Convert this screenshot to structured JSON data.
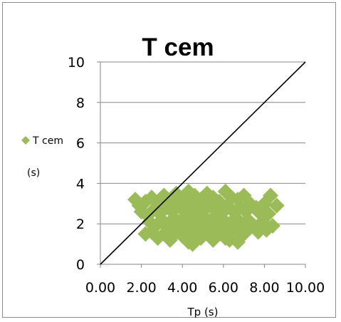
{
  "chart_data": {
    "type": "scatter",
    "title": "T cem",
    "xlabel": "Tp (s)",
    "ylabel": "",
    "xlim": [
      0,
      10
    ],
    "ylim": [
      0,
      10
    ],
    "x_tick_labels": [
      "0.00",
      "2.00",
      "4.00",
      "6.00",
      "8.00",
      "10.00"
    ],
    "y_tick_labels": [
      "0",
      "2",
      "4",
      "6",
      "8",
      "10"
    ],
    "grid": "horizontal",
    "legend_position": "left",
    "series": [
      {
        "name": "T cem (s)",
        "marker": "diamond",
        "color": "#9bbb59",
        "points": [
          [
            1.7,
            3.2
          ],
          [
            1.9,
            2.9
          ],
          [
            2.2,
            3.1
          ],
          [
            2.5,
            3.3
          ],
          [
            2.8,
            3.0
          ],
          [
            3.1,
            3.4
          ],
          [
            3.4,
            3.2
          ],
          [
            3.7,
            3.5
          ],
          [
            4.0,
            3.3
          ],
          [
            4.3,
            3.6
          ],
          [
            4.6,
            3.4
          ],
          [
            4.9,
            3.2
          ],
          [
            5.2,
            3.5
          ],
          [
            5.5,
            3.3
          ],
          [
            5.8,
            3.1
          ],
          [
            6.1,
            3.6
          ],
          [
            6.4,
            3.3
          ],
          [
            6.7,
            3.2
          ],
          [
            7.0,
            3.4
          ],
          [
            7.3,
            3.0
          ],
          [
            7.6,
            2.8
          ],
          [
            8.0,
            3.0
          ],
          [
            8.3,
            3.4
          ],
          [
            8.6,
            2.9
          ],
          [
            2.0,
            2.6
          ],
          [
            2.3,
            2.4
          ],
          [
            2.6,
            2.7
          ],
          [
            2.9,
            2.5
          ],
          [
            3.2,
            2.8
          ],
          [
            3.5,
            2.6
          ],
          [
            3.8,
            2.9
          ],
          [
            4.1,
            2.7
          ],
          [
            4.4,
            3.0
          ],
          [
            4.7,
            2.8
          ],
          [
            5.0,
            2.6
          ],
          [
            5.3,
            2.9
          ],
          [
            5.6,
            2.7
          ],
          [
            5.9,
            2.5
          ],
          [
            6.2,
            2.9
          ],
          [
            6.5,
            2.6
          ],
          [
            6.8,
            2.8
          ],
          [
            7.1,
            2.6
          ],
          [
            7.4,
            2.9
          ],
          [
            7.7,
            2.6
          ],
          [
            8.2,
            2.5
          ],
          [
            2.4,
            2.1
          ],
          [
            2.7,
            1.9
          ],
          [
            3.0,
            2.2
          ],
          [
            3.3,
            2.0
          ],
          [
            3.6,
            2.3
          ],
          [
            3.9,
            2.1
          ],
          [
            4.2,
            2.4
          ],
          [
            4.5,
            2.2
          ],
          [
            4.8,
            2.0
          ],
          [
            5.1,
            2.3
          ],
          [
            5.4,
            2.1
          ],
          [
            5.7,
            1.9
          ],
          [
            6.0,
            2.2
          ],
          [
            6.3,
            2.0
          ],
          [
            6.6,
            2.3
          ],
          [
            6.9,
            2.0
          ],
          [
            7.2,
            2.2
          ],
          [
            7.5,
            1.9
          ],
          [
            7.9,
            2.1
          ],
          [
            8.4,
            1.9
          ],
          [
            2.2,
            1.5
          ],
          [
            2.5,
            1.6
          ],
          [
            2.8,
            1.3
          ],
          [
            3.1,
            1.5
          ],
          [
            3.4,
            1.2
          ],
          [
            3.7,
            1.6
          ],
          [
            4.0,
            1.4
          ],
          [
            4.3,
            1.1
          ],
          [
            4.6,
            1.5
          ],
          [
            4.9,
            1.3
          ],
          [
            5.2,
            1.6
          ],
          [
            5.5,
            1.2
          ],
          [
            5.8,
            1.5
          ],
          [
            6.1,
            1.3
          ],
          [
            6.4,
            1.6
          ],
          [
            6.7,
            1.1
          ],
          [
            7.0,
            1.5
          ],
          [
            7.3,
            1.8
          ],
          [
            7.7,
            1.6
          ],
          [
            8.1,
            1.7
          ],
          [
            3.3,
            1.8
          ],
          [
            3.6,
            1.9
          ],
          [
            3.9,
            1.7
          ],
          [
            4.2,
            1.8
          ],
          [
            4.5,
            1.0
          ],
          [
            4.8,
            1.8
          ],
          [
            5.1,
            1.7
          ],
          [
            5.4,
            1.9
          ],
          [
            5.7,
            1.8
          ],
          [
            6.0,
            1.7
          ],
          [
            6.3,
            1.2
          ],
          [
            6.6,
            1.7
          ],
          [
            4.1,
            2.6
          ],
          [
            4.6,
            2.5
          ],
          [
            5.2,
            3.0
          ],
          [
            5.6,
            2.4
          ]
        ]
      },
      {
        "name": "",
        "type": "line",
        "color": "#000000",
        "points": [
          [
            0,
            0
          ],
          [
            10,
            10
          ]
        ]
      }
    ]
  },
  "legend": {
    "line1": "T cem",
    "line2": "(s)"
  }
}
